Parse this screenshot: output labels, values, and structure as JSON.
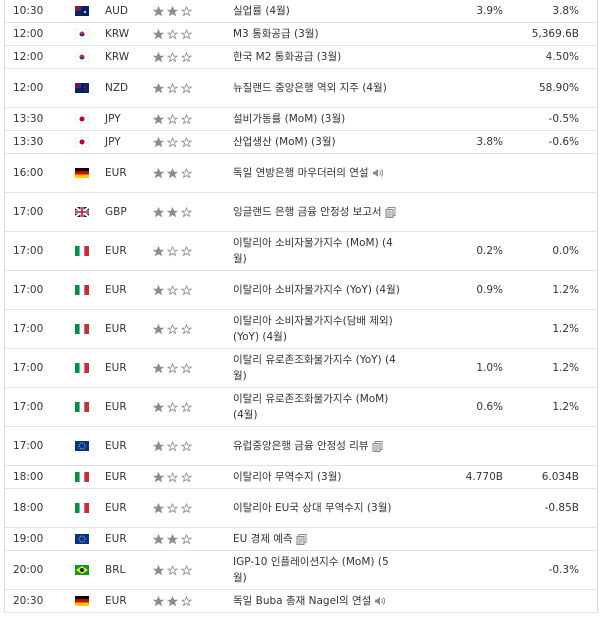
{
  "rows": [
    {
      "time": "10:30",
      "currency": "AUD",
      "importance": 2,
      "event": "실업률 (4월)",
      "forecast": "3.9%",
      "previous": "3.8%"
    },
    {
      "time": "12:00",
      "currency": "KRW",
      "importance": 1,
      "event": "M3 통화공급 (3월)",
      "previous": "5,369.6B"
    },
    {
      "time": "12:00",
      "currency": "KRW",
      "importance": 1,
      "event": "한국 M2 통화공급 (3월)",
      "previous": "4.50%"
    },
    {
      "time": "12:00",
      "currency": "NZD",
      "importance": 1,
      "event": "뉴질랜드 중앙은행 역외 지주 (4월)",
      "previous": "58.90%"
    },
    {
      "time": "13:30",
      "currency": "JPY",
      "importance": 1,
      "event": "설비가동률 (MoM) (3월)",
      "previous": "-0.5%"
    },
    {
      "time": "13:30",
      "currency": "JPY",
      "importance": 1,
      "event": "산업생산 (MoM) (3월)",
      "forecast": "3.8%",
      "previous": "-0.6%"
    },
    {
      "time": "16:00",
      "currency": "EUR",
      "importance": 2,
      "event": "독일 연방은행 마우더러의 연설"
    },
    {
      "time": "17:00",
      "currency": "GBP",
      "importance": 2,
      "event": "잉글랜드 은행 금융 안정성 보고서"
    },
    {
      "time": "17:00",
      "currency": "EUR",
      "importance": 1,
      "event": "이탈리아 소비자물가지수 (MoM) (4월)",
      "forecast": "0.2%",
      "previous": "0.0%"
    },
    {
      "time": "17:00",
      "currency": "EUR",
      "importance": 1,
      "event": "이탈리아 소비자물가지수 (YoY) (4월)",
      "forecast": "0.9%",
      "previous": "1.2%"
    },
    {
      "time": "17:00",
      "currency": "EUR",
      "importance": 1,
      "event": "이탈리아 소비자물가지수(담배 제외) (YoY) (4월)",
      "previous": "1.2%"
    },
    {
      "time": "17:00",
      "currency": "EUR",
      "importance": 1,
      "event": "이탈리 유로존조화물가지수 (YoY) (4월)",
      "forecast": "1.0%",
      "previous": "1.2%"
    },
    {
      "time": "17:00",
      "currency": "EUR",
      "importance": 1,
      "event": "이탈리 유로존조화물가지수 (MoM) (4월)",
      "forecast": "0.6%",
      "previous": "1.2%"
    },
    {
      "time": "17:00",
      "currency": "EUR",
      "importance": 1,
      "event": "유럽중앙은행 금융 안정성 리뷰"
    },
    {
      "time": "18:00",
      "currency": "EUR",
      "importance": 1,
      "event": "이탈리아 무역수지 (3월)",
      "forecast": "4.770B",
      "previous": "6.034B"
    },
    {
      "time": "18:00",
      "currency": "EUR",
      "importance": 1,
      "event": "이탈리아 EU국 상대 무역수지 (3월)",
      "previous": "-0.85B"
    },
    {
      "time": "19:00",
      "currency": "EUR",
      "importance": 2,
      "event": "EU 경제 예측"
    },
    {
      "time": "20:00",
      "currency": "BRL",
      "importance": 1,
      "event": "IGP-10 인플레이션지수 (MoM) (5월)",
      "previous": "-0.3%"
    },
    {
      "time": "20:30",
      "currency": "EUR",
      "importance": 2,
      "event": "독일 Buba 총재 Nagel의 연설"
    }
  ]
}
